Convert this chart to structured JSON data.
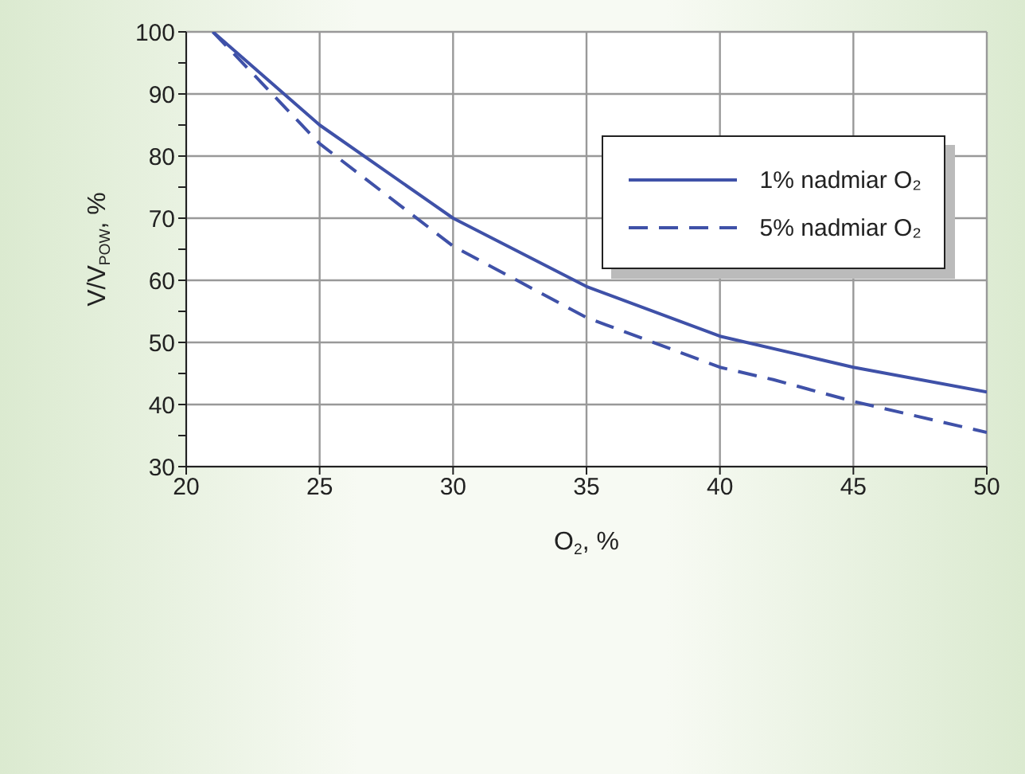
{
  "chart_data": {
    "type": "line",
    "xlabel": "O$_{2}$, %",
    "ylabel": "V/V$_{POW}$, %",
    "xlim": [
      20,
      50
    ],
    "xticks": [
      20,
      25,
      30,
      35,
      40,
      45,
      50
    ],
    "ylim": [
      30,
      100
    ],
    "yticks": [
      30,
      {
        "value": 35,
        "label": null
      },
      40,
      {
        "value": 45,
        "label": null
      },
      50,
      {
        "value": 55,
        "label": null
      },
      60,
      {
        "value": 65,
        "label": null
      },
      70,
      {
        "value": 75,
        "label": null
      },
      80,
      {
        "value": 85,
        "label": null
      },
      90,
      {
        "value": 95,
        "label": null
      },
      100
    ],
    "grid": true,
    "legend": "top right",
    "marker": "none",
    "series": [
      {
        "name": "1% nadmiar O₂",
        "color": "#3f51a8",
        "line_style": "solid",
        "x": [
          21,
          25,
          30,
          35,
          40,
          45,
          50
        ],
        "values": [
          100,
          85,
          70,
          59,
          51,
          46,
          42
        ]
      },
      {
        "name": "5% nadmiar O₂",
        "color": "#3f51a8",
        "line_style": "dashed",
        "x": [
          21,
          25,
          30,
          35,
          40,
          42,
          45,
          50
        ],
        "values": [
          100,
          82,
          65.5,
          54,
          46,
          44,
          40.5,
          35.5
        ]
      }
    ]
  }
}
